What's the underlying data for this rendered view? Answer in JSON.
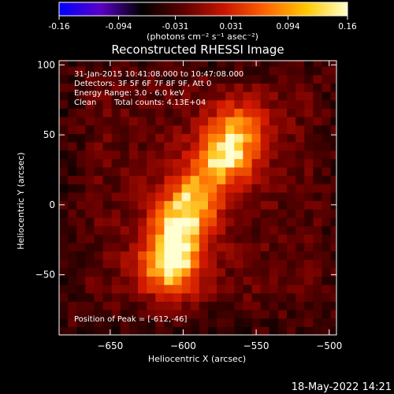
{
  "colorbar": {
    "tick_labels": [
      "-0.16",
      "-0.094",
      "-0.031",
      "0.031",
      "0.094",
      "0.16"
    ],
    "tick_values": [
      -0.16,
      -0.094,
      -0.031,
      0.031,
      0.094,
      0.16
    ],
    "range": [
      -0.16,
      0.16
    ],
    "units_label": "(photons cm⁻² s⁻¹ asec⁻²)",
    "colors": [
      "#0000ff",
      "#5a00c8",
      "#000000",
      "#5a0000",
      "#c81400",
      "#ff6400",
      "#ffc800",
      "#ffffc8"
    ]
  },
  "chart_data": {
    "type": "heatmap",
    "title": "Reconstructed RHESSI Image",
    "xlabel": "Heliocentric X (arcsec)",
    "ylabel": "Heliocentric Y (arcsec)",
    "xlim": [
      -685,
      -495
    ],
    "ylim": [
      -93,
      103
    ],
    "xticks": [
      -650,
      -600,
      -550,
      -500
    ],
    "yticks": [
      -50,
      0,
      50,
      100
    ],
    "xtick_labels": [
      "−650",
      "−600",
      "−550",
      "−500"
    ],
    "ytick_labels": [
      "−50",
      "0",
      "50",
      "100"
    ],
    "colormap": "hot",
    "grid": false,
    "sources": [
      {
        "x": -612,
        "y": -46,
        "intensity": 0.16
      },
      {
        "x": -605,
        "y": -18,
        "intensity": 0.13
      },
      {
        "x": -595,
        "y": 5,
        "intensity": 0.11
      },
      {
        "x": -575,
        "y": 30,
        "intensity": 0.13
      },
      {
        "x": -565,
        "y": 52,
        "intensity": 0.11
      }
    ],
    "background_level": 0.035,
    "annotations": [
      "31-Jan-2015 10:41:08.000 to 10:47:08.000",
      "Detectors: 3F 5F 6F 7F 8F 9F, Att 0",
      "Energy Range: 3.0 - 6.0 keV",
      "Clean",
      "Total counts: 4.13E+04",
      "Position of Peak = [-612,-46]"
    ]
  },
  "timestamp": "18-May-2022 14:21"
}
